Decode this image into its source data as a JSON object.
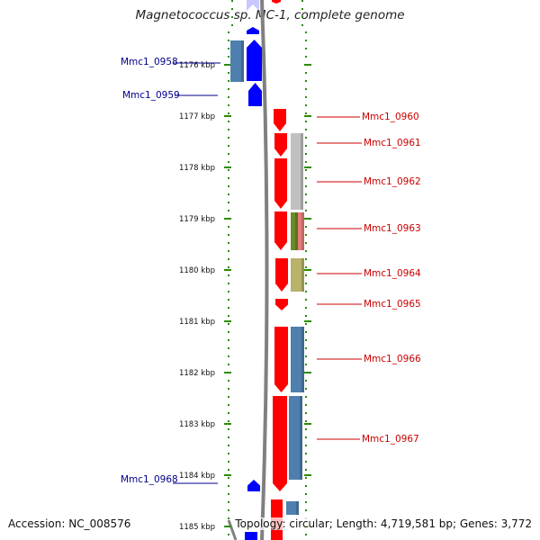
{
  "header": {
    "title": "Magnetococcus sp. MC-1, complete genome"
  },
  "footer": {
    "accession": "Accession: NC_008576",
    "summary": "Topology: circular; Length: 4,719,581 bp; Genes: 3,772"
  },
  "scale": {
    "ticks": [
      "1176 kbp",
      "1177 kbp",
      "1178 kbp",
      "1179 kbp",
      "1180 kbp",
      "1181 kbp",
      "1182 kbp",
      "1183 kbp",
      "1184 kbp",
      "1185 kbp"
    ]
  },
  "genes_left": [
    {
      "label": "Mmc1_0958",
      "color": "#00008b"
    },
    {
      "label": "Mmc1_0959",
      "color": "#00008b"
    },
    {
      "label": "Mmc1_0968",
      "color": "#00008b"
    }
  ],
  "genes_right": [
    {
      "label": "Mmc1_0960",
      "color": "#cc0000"
    },
    {
      "label": "Mmc1_0961",
      "color": "#cc0000"
    },
    {
      "label": "Mmc1_0962",
      "color": "#cc0000"
    },
    {
      "label": "Mmc1_0963",
      "color": "#cc0000"
    },
    {
      "label": "Mmc1_0964",
      "color": "#cc0000"
    },
    {
      "label": "Mmc1_0965",
      "color": "#cc0000"
    },
    {
      "label": "Mmc1_0966",
      "color": "#cc0000"
    },
    {
      "label": "Mmc1_0967",
      "color": "#cc0000"
    }
  ],
  "colors": {
    "forward_gene": "#ff0000",
    "reverse_gene": "#0000ff",
    "tick_green": "#2e8b00",
    "backbone": "#808080",
    "cog_blue": "#4f7fae",
    "cog_grey": "#c0c0c0",
    "cog_olive": "#b8b26a",
    "cog_green": "#6b8c2a",
    "cog_pink": "#e87c7c"
  }
}
